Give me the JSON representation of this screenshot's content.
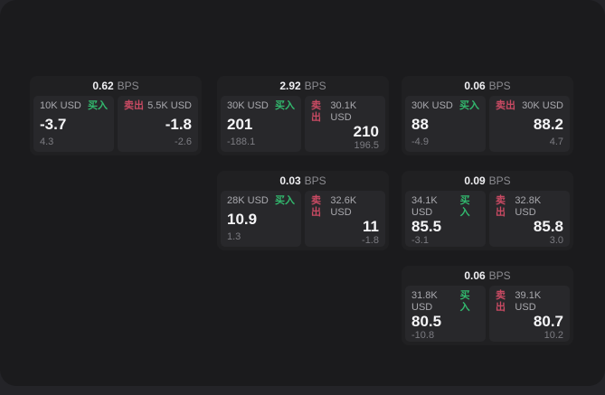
{
  "labels": {
    "bps_unit": "BPS",
    "buy": "买入",
    "sell": "卖出"
  },
  "colors": {
    "buy_green": "#32b96e",
    "sell_red": "#c94a63",
    "window_bg": "#1b1b1d",
    "card_bg": "#202022",
    "panel_bg": "#28282b"
  },
  "cards": [
    {
      "bps": "0.62",
      "buy": {
        "amount": "10K USD",
        "value": "-3.7",
        "sub": "4.3"
      },
      "sell": {
        "amount": "5.5K USD",
        "value": "-1.8",
        "sub": "-2.6"
      }
    },
    {
      "bps": "2.92",
      "buy": {
        "amount": "30K USD",
        "value": "201",
        "sub": "-188.1"
      },
      "sell": {
        "amount": "30.1K USD",
        "value": "210",
        "sub": "196.5"
      }
    },
    {
      "bps": "0.06",
      "buy": {
        "amount": "30K USD",
        "value": "88",
        "sub": "-4.9"
      },
      "sell": {
        "amount": "30K USD",
        "value": "88.2",
        "sub": "4.7"
      }
    },
    {
      "bps": "0.03",
      "buy": {
        "amount": "28K USD",
        "value": "10.9",
        "sub": "1.3"
      },
      "sell": {
        "amount": "32.6K USD",
        "value": "11",
        "sub": "-1.8"
      }
    },
    {
      "bps": "0.09",
      "buy": {
        "amount": "34.1K USD",
        "value": "85.5",
        "sub": "-3.1"
      },
      "sell": {
        "amount": "32.8K USD",
        "value": "85.8",
        "sub": "3.0"
      }
    },
    {
      "bps": "0.06",
      "buy": {
        "amount": "31.8K USD",
        "value": "80.5",
        "sub": "-10.8"
      },
      "sell": {
        "amount": "39.1K USD",
        "value": "80.7",
        "sub": "10.2"
      }
    }
  ]
}
